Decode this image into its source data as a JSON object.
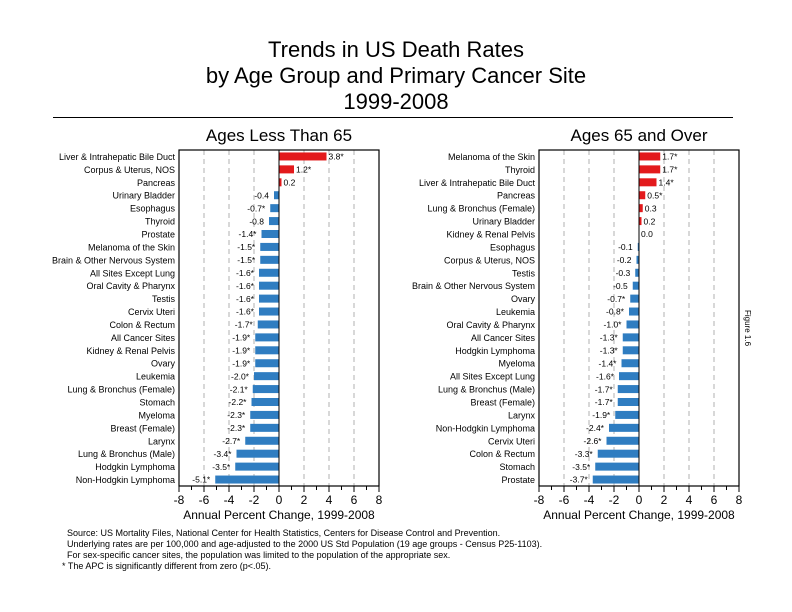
{
  "title_lines": [
    "Trends in US Death Rates",
    "by Age Group and Primary Cancer Site",
    "1999-2008"
  ],
  "figure_label": "Figure 1.6",
  "footnotes": [
    "Source: US Mortality Files, National Center for Health Statistics, Centers for Disease Control and Prevention.",
    "Underlying rates are per 100,000 and age-adjusted to the 2000 US Std Population (19 age groups - Census P25-1103).",
    "For sex-specific cancer sites, the population was limited to the population of the appropriate sex.",
    "* The APC is significantly different from zero (p<.05)."
  ],
  "colors": {
    "positive": "#e31a1c",
    "negative": "#2f7dc1",
    "grid": "#b0b0b0",
    "axis": "#000000"
  },
  "chart_data": [
    {
      "type": "bar",
      "orientation": "horizontal",
      "title": "Ages Less Than 65",
      "xlabel": "Annual Percent Change, 1999-2008",
      "ylabel": "",
      "xlim": [
        -8,
        8
      ],
      "xticks": [
        -8,
        -6,
        -4,
        -2,
        0,
        2,
        4,
        6,
        8
      ],
      "grid": "vertical dashed at major ticks",
      "categories": [
        "Liver & Intrahepatic Bile Duct",
        "Corpus & Uterus, NOS",
        "Pancreas",
        "Urinary Bladder",
        "Esophagus",
        "Thyroid",
        "Prostate",
        "Melanoma of the Skin",
        "Brain & Other Nervous System",
        "All Sites Except Lung",
        "Oral Cavity & Pharynx",
        "Testis",
        "Cervix Uteri",
        "Colon & Rectum",
        "All Cancer Sites",
        "Kidney & Renal Pelvis",
        "Ovary",
        "Leukemia",
        "Lung & Bronchus (Female)",
        "Stomach",
        "Myeloma",
        "Breast (Female)",
        "Larynx",
        "Lung & Bronchus (Male)",
        "Hodgkin Lymphoma",
        "Non-Hodgkin Lymphoma"
      ],
      "values": [
        3.8,
        1.2,
        0.2,
        -0.4,
        -0.7,
        -0.8,
        -1.4,
        -1.5,
        -1.5,
        -1.6,
        -1.6,
        -1.6,
        -1.6,
        -1.7,
        -1.9,
        -1.9,
        -1.9,
        -2.0,
        -2.1,
        -2.2,
        -2.3,
        -2.3,
        -2.7,
        -3.4,
        -3.5,
        -5.1
      ],
      "labels": [
        "3.8*",
        "1.2*",
        "0.2",
        "-0.4",
        "-0.7*",
        "-0.8",
        "-1.4*",
        "-1.5*",
        "-1.5*",
        "-1.6*",
        "-1.6*",
        "-1.6*",
        "-1.6*",
        "-1.7*",
        "-1.9*",
        "-1.9*",
        "-1.9*",
        "-2.0*",
        "-2.1*",
        "-2.2*",
        "-2.3*",
        "-2.3*",
        "-2.7*",
        "-3.4*",
        "-3.5*",
        "-5.1*"
      ]
    },
    {
      "type": "bar",
      "orientation": "horizontal",
      "title": "Ages 65 and Over",
      "xlabel": "Annual Percent Change, 1999-2008",
      "ylabel": "",
      "xlim": [
        -8,
        8
      ],
      "xticks": [
        -8,
        -6,
        -4,
        -2,
        0,
        2,
        4,
        6,
        8
      ],
      "grid": "vertical dashed at major ticks",
      "categories": [
        "Melanoma of the Skin",
        "Thyroid",
        "Liver & Intrahepatic Bile Duct",
        "Pancreas",
        "Lung & Bronchus (Female)",
        "Urinary Bladder",
        "Kidney & Renal Pelvis",
        "Esophagus",
        "Corpus & Uterus, NOS",
        "Testis",
        "Brain & Other Nervous System",
        "Ovary",
        "Leukemia",
        "Oral Cavity & Pharynx",
        "All Cancer Sites",
        "Hodgkin Lymphoma",
        "Myeloma",
        "All Sites Except Lung",
        "Lung & Bronchus (Male)",
        "Breast (Female)",
        "Larynx",
        "Non-Hodgkin Lymphoma",
        "Cervix Uteri",
        "Colon & Rectum",
        "Stomach",
        "Prostate"
      ],
      "values": [
        1.7,
        1.7,
        1.4,
        0.5,
        0.3,
        0.2,
        0.0,
        -0.1,
        -0.2,
        -0.3,
        -0.5,
        -0.7,
        -0.8,
        -1.0,
        -1.3,
        -1.3,
        -1.4,
        -1.6,
        -1.7,
        -1.7,
        -1.9,
        -2.4,
        -2.6,
        -3.3,
        -3.5,
        -3.7
      ],
      "labels": [
        "1.7*",
        "1.7*",
        "1.4*",
        "0.5*",
        "0.3",
        "0.2",
        "0.0",
        "-0.1",
        "-0.2",
        "-0.3",
        "-0.5",
        "-0.7*",
        "-0.8*",
        "-1.0*",
        "-1.3*",
        "-1.3*",
        "-1.4*",
        "-1.6*",
        "-1.7*",
        "-1.7*",
        "-1.9*",
        "-2.4*",
        "-2.6*",
        "-3.3*",
        "-3.5*",
        "-3.7*"
      ]
    }
  ]
}
